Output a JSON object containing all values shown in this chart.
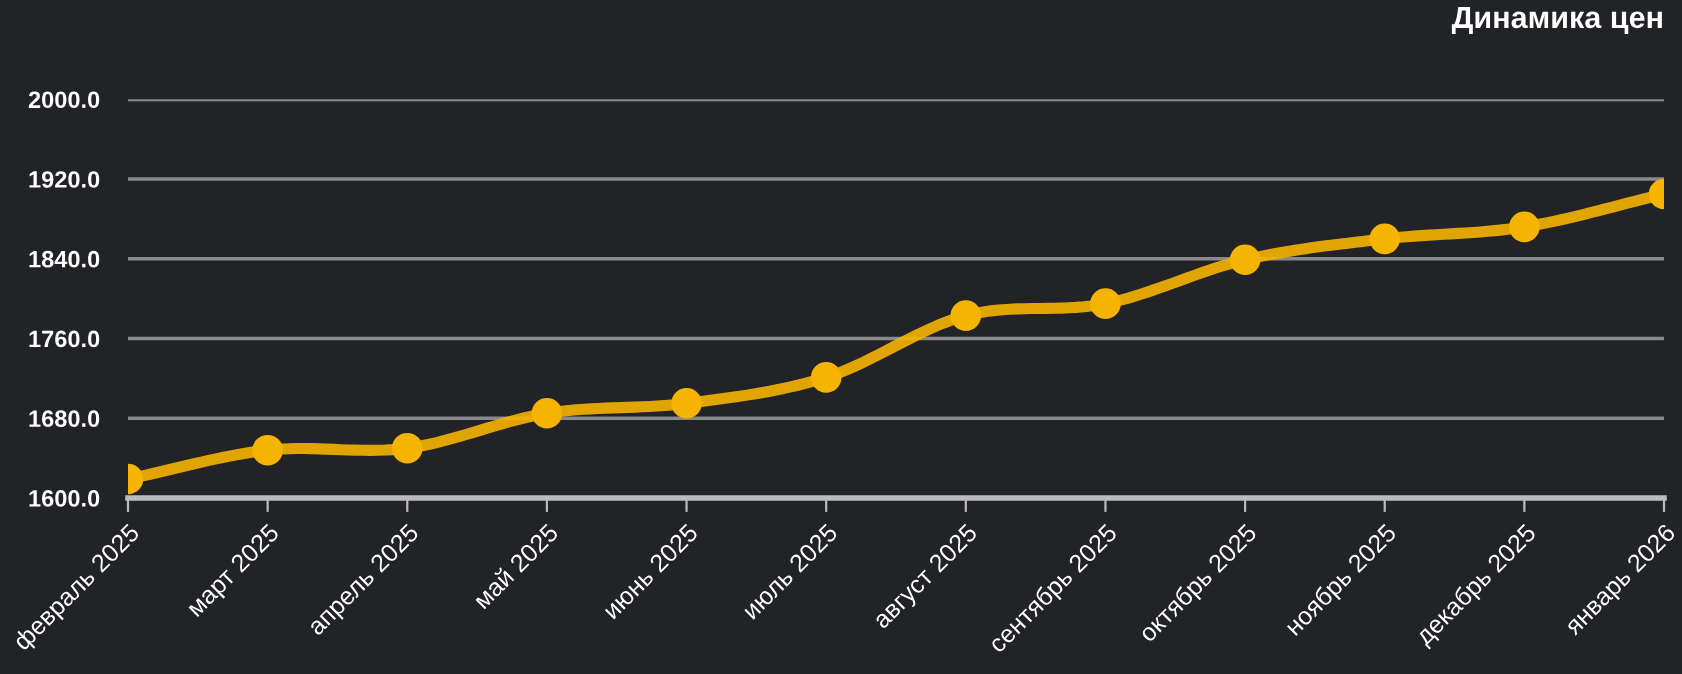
{
  "chart_data": {
    "type": "line",
    "title": "Динамика цен",
    "categories": [
      "февраль 2025",
      "март 2025",
      "апрель 2025",
      "май 2025",
      "июнь 2025",
      "июль 2025",
      "август 2025",
      "сентябрь 2025",
      "октябрь 2025",
      "ноябрь 2025",
      "декабрь 2025",
      "январь 2026"
    ],
    "series": [
      {
        "color": "#f5b400",
        "values": [
          1619,
          1648,
          1650,
          1685,
          1695,
          1721,
          1783,
          1795,
          1839,
          1860,
          1872,
          1905
        ]
      }
    ],
    "ylim": [
      1600,
      2000
    ],
    "yticks": [
      {
        "value": 1600,
        "label": "1600.0"
      },
      {
        "value": 1680,
        "label": "1680.0"
      },
      {
        "value": 1760,
        "label": "1760.0"
      },
      {
        "value": 1840,
        "label": "1840.0"
      },
      {
        "value": 1920,
        "label": "1920.0"
      },
      {
        "value": 2000,
        "label": "2000.0"
      }
    ],
    "grid": "y",
    "marker": "circle",
    "line_style": "solid",
    "legend": false
  }
}
